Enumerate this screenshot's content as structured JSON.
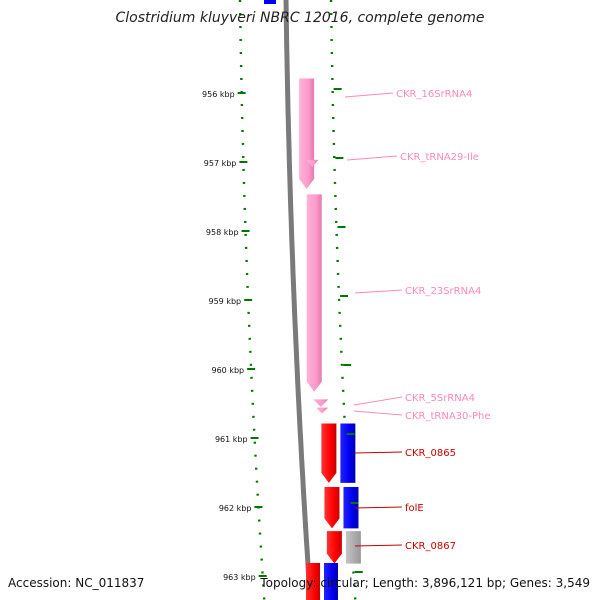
{
  "title": "Clostridium kluyveri NBRC 12016, complete genome",
  "accession": "Accession: NC_011837",
  "summary": "Topology: circular; Length: 3,896,121 bp; Genes: 3,549",
  "ticks": [
    {
      "kbp": 956,
      "label": "956 kbp"
    },
    {
      "kbp": 957,
      "label": "957 kbp"
    },
    {
      "kbp": 958,
      "label": "958 kbp"
    },
    {
      "kbp": 959,
      "label": "959 kbp"
    },
    {
      "kbp": 960,
      "label": "960 kbp"
    },
    {
      "kbp": 961,
      "label": "961 kbp"
    },
    {
      "kbp": 962,
      "label": "962 kbp"
    },
    {
      "kbp": 963,
      "label": "963 kbp"
    }
  ],
  "features": [
    {
      "name": "CKR_16SrRNA4",
      "type": "rRNA",
      "strand": "+",
      "start_kbp": 955.79,
      "end_kbp": 957.39
    },
    {
      "name": "CKR_tRNA29-Ile",
      "type": "tRNA",
      "strand": "+",
      "start_kbp": 956.97,
      "end_kbp": 957.06
    },
    {
      "name": "CKR_23SrRNA4",
      "type": "rRNA",
      "strand": "+",
      "start_kbp": 957.47,
      "end_kbp": 960.33
    },
    {
      "name": "CKR_5SrRNA4",
      "type": "rRNA",
      "strand": "+",
      "start_kbp": 960.44,
      "end_kbp": 960.55
    },
    {
      "name": "CKR_tRNA30-Phe",
      "type": "tRNA",
      "strand": "+",
      "start_kbp": 960.56,
      "end_kbp": 960.63
    },
    {
      "name": "CKR_0865",
      "type": "CDS",
      "strand": "+",
      "start_kbp": 960.79,
      "end_kbp": 961.65
    },
    {
      "name": "folE",
      "type": "CDS",
      "strand": "+",
      "start_kbp": 961.71,
      "end_kbp": 962.31
    },
    {
      "name": "CKR_0867",
      "type": "CDS",
      "strand": "+",
      "start_kbp": 962.35,
      "end_kbp": 962.82
    }
  ],
  "colors": {
    "rRNA": "#ff99cc",
    "tRNA": "#ff99cc",
    "CDS": "#ff0000",
    "cog_blue": "#0000ee",
    "cog_gray": "#aaaaaa",
    "backbone": "#7a7a7a",
    "tick": "#007700",
    "label_red": "#cc0000",
    "label_pink": "#ff88bb"
  }
}
